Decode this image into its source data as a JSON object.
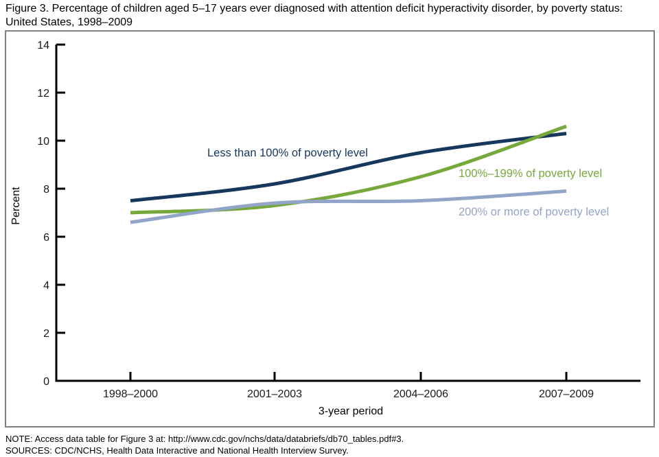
{
  "title": "Figure 3. Percentage of children aged 5–17 years ever diagnosed with attention deficit hyperactivity disorder, by poverty status: United States, 1998–2009",
  "chart_data": {
    "type": "line",
    "categories": [
      "1998–2000",
      "2001–2003",
      "2004–2006",
      "2007–2009"
    ],
    "series": [
      {
        "name": "Less than 100% of poverty level",
        "values": [
          7.5,
          8.2,
          9.5,
          10.3
        ],
        "color": "#17375D"
      },
      {
        "name": "100%–199% of poverty level",
        "values": [
          7.0,
          7.3,
          8.5,
          10.6
        ],
        "color": "#77A83C"
      },
      {
        "name": "200% or more of poverty level",
        "values": [
          6.6,
          7.4,
          7.5,
          7.9
        ],
        "color": "#92A5C8"
      }
    ],
    "title": "",
    "xlabel": "3-year period",
    "ylabel": "Percent",
    "ylim": [
      0,
      14
    ],
    "yticks": [
      0,
      2,
      4,
      6,
      8,
      10,
      12,
      14
    ],
    "grid": false,
    "legend_position": "inline-labels"
  },
  "notes": {
    "note": "NOTE: Access data table for Figure 3 at: http://www.cdc.gov/nchs/data/databriefs/db70_tables.pdf#3.",
    "sources": "SOURCES: CDC/NCHS, Health Data Interactive and National Health Interview Survey."
  },
  "colors": {
    "axis": "#000000",
    "tick_text": "#1a1a1a",
    "box_border": "#808080",
    "background": "#ffffff"
  }
}
